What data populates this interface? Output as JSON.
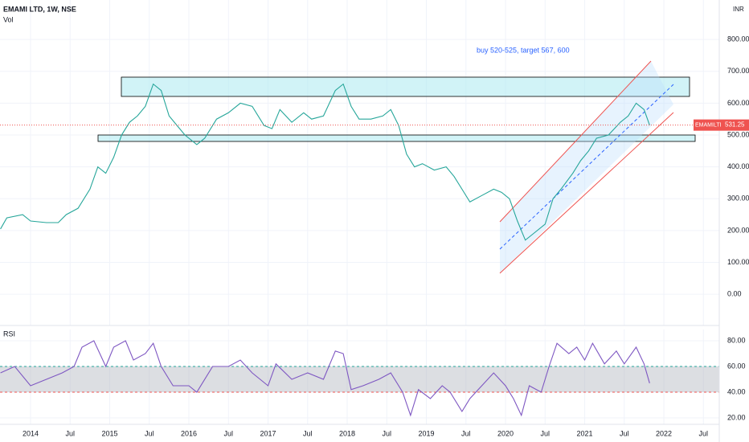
{
  "chart_data": [
    {
      "type": "line",
      "title": "EMAMI LTD, 1W, NSE",
      "volume_label": "Vol",
      "currency": "INR",
      "annotation": "buy 520-525, target 567, 600",
      "x": [
        2013.62,
        2013.7,
        2013.9,
        2014.0,
        2014.2,
        2014.35,
        2014.45,
        2014.6,
        2014.75,
        2014.85,
        2014.95,
        2015.05,
        2015.15,
        2015.25,
        2015.35,
        2015.45,
        2015.55,
        2015.65,
        2015.75,
        2015.85,
        2015.95,
        2016.1,
        2016.2,
        2016.35,
        2016.5,
        2016.65,
        2016.8,
        2016.95,
        2017.05,
        2017.15,
        2017.3,
        2017.45,
        2017.55,
        2017.7,
        2017.85,
        2017.95,
        2018.05,
        2018.15,
        2018.3,
        2018.45,
        2018.55,
        2018.65,
        2018.75,
        2018.85,
        2018.95,
        2019.1,
        2019.25,
        2019.35,
        2019.45,
        2019.55,
        2019.7,
        2019.85,
        2019.95,
        2020.05,
        2020.15,
        2020.25,
        2020.35,
        2020.5,
        2020.6,
        2020.7,
        2020.85,
        2020.95,
        2021.05,
        2021.15,
        2021.3,
        2021.45,
        2021.55,
        2021.65,
        2021.75,
        2021.82
      ],
      "series": [
        {
          "name": "EMAMILTD",
          "color": "#26a69a",
          "tag_color": "#ef5350",
          "values": [
            205,
            240,
            250,
            230,
            225,
            225,
            250,
            270,
            330,
            400,
            380,
            430,
            500,
            540,
            560,
            590,
            660,
            640,
            560,
            530,
            500,
            470,
            490,
            550,
            570,
            600,
            590,
            530,
            520,
            580,
            540,
            570,
            550,
            560,
            640,
            660,
            590,
            550,
            550,
            560,
            580,
            530,
            440,
            400,
            410,
            390,
            400,
            370,
            330,
            290,
            310,
            330,
            320,
            300,
            230,
            170,
            190,
            220,
            300,
            330,
            380,
            420,
            450,
            490,
            500,
            540,
            560,
            600,
            580,
            531.25
          ]
        }
      ],
      "xlim": [
        2013.614,
        2022.7
      ],
      "ylim": [
        -98,
        924
      ],
      "xticks": [
        {
          "value": 2014,
          "label": "2014"
        },
        {
          "value": 2014.5,
          "label": "Jul"
        },
        {
          "value": 2015,
          "label": "2015"
        },
        {
          "value": 2015.5,
          "label": "Jul"
        },
        {
          "value": 2016,
          "label": "2016"
        },
        {
          "value": 2016.5,
          "label": "Jul"
        },
        {
          "value": 2017,
          "label": "2017"
        },
        {
          "value": 2017.5,
          "label": "Jul"
        },
        {
          "value": 2018,
          "label": "2018"
        },
        {
          "value": 2018.5,
          "label": "Jul"
        },
        {
          "value": 2019,
          "label": "2019"
        },
        {
          "value": 2019.5,
          "label": "Jul"
        },
        {
          "value": 2020,
          "label": "2020"
        },
        {
          "value": 2020.5,
          "label": "Jul"
        },
        {
          "value": 2021,
          "label": "2021"
        },
        {
          "value": 2021.5,
          "label": "Jul"
        },
        {
          "value": 2022,
          "label": "2022"
        },
        {
          "value": 2022.5,
          "label": "Jul"
        }
      ],
      "yticks": [
        {
          "value": 0,
          "label": "0.00"
        },
        {
          "value": 100,
          "label": "100.00"
        },
        {
          "value": 200,
          "label": "200.00"
        },
        {
          "value": 300,
          "label": "300.00"
        },
        {
          "value": 400,
          "label": "400.00"
        },
        {
          "value": 500,
          "label": "500.00"
        },
        {
          "value": 600,
          "label": "600.00"
        },
        {
          "value": 700,
          "label": "700.00"
        },
        {
          "value": 800,
          "label": "800.00"
        }
      ],
      "grid": true
    },
    {
      "type": "line",
      "title": "RSI",
      "x": [
        2013.62,
        2013.8,
        2014.0,
        2014.2,
        2014.4,
        2014.55,
        2014.65,
        2014.8,
        2014.95,
        2015.05,
        2015.2,
        2015.3,
        2015.45,
        2015.55,
        2015.65,
        2015.8,
        2016.0,
        2016.1,
        2016.3,
        2016.5,
        2016.65,
        2016.8,
        2017.0,
        2017.1,
        2017.3,
        2017.5,
        2017.7,
        2017.85,
        2017.95,
        2018.05,
        2018.2,
        2018.4,
        2018.55,
        2018.7,
        2018.8,
        2018.9,
        2019.05,
        2019.2,
        2019.3,
        2019.45,
        2019.55,
        2019.7,
        2019.85,
        2020.0,
        2020.1,
        2020.2,
        2020.3,
        2020.45,
        2020.55,
        2020.65,
        2020.8,
        2020.9,
        2021.0,
        2021.1,
        2021.25,
        2021.4,
        2021.5,
        2021.65,
        2021.75,
        2021.82
      ],
      "series": [
        {
          "name": "RSI",
          "color": "#7e57c2",
          "values": [
            55,
            60,
            45,
            50,
            55,
            60,
            75,
            80,
            60,
            75,
            80,
            65,
            70,
            78,
            60,
            45,
            45,
            40,
            60,
            60,
            65,
            55,
            45,
            62,
            50,
            55,
            50,
            72,
            70,
            42,
            45,
            50,
            55,
            40,
            22,
            42,
            35,
            45,
            40,
            25,
            35,
            45,
            55,
            45,
            35,
            22,
            45,
            40,
            60,
            78,
            70,
            75,
            65,
            78,
            62,
            72,
            62,
            75,
            62,
            47
          ]
        }
      ],
      "band": [
        40,
        60
      ],
      "xlim": [
        2013.614,
        2022.7
      ],
      "ylim": [
        15,
        88.75
      ],
      "yticks": [
        {
          "value": 20,
          "label": "20.00"
        },
        {
          "value": 40,
          "label": "40.00"
        },
        {
          "value": 60,
          "label": "60.00"
        },
        {
          "value": 80,
          "label": "80.00"
        }
      ],
      "grid": true
    }
  ]
}
